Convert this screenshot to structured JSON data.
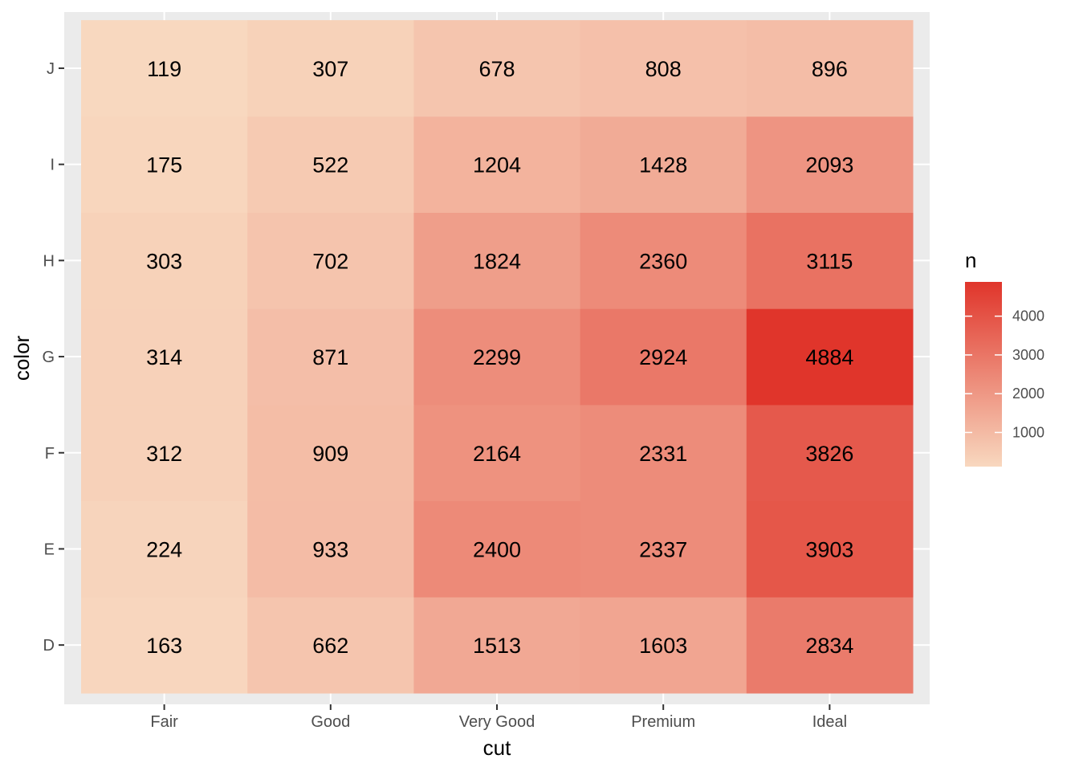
{
  "chart_data": {
    "type": "heatmap",
    "title": "",
    "xlabel": "cut",
    "ylabel": "color",
    "x_categories": [
      "Fair",
      "Good",
      "Very Good",
      "Premium",
      "Ideal"
    ],
    "y_categories": [
      "D",
      "E",
      "F",
      "G",
      "H",
      "I",
      "J"
    ],
    "values": [
      [
        163,
        662,
        1513,
        1603,
        2834
      ],
      [
        224,
        933,
        2400,
        2337,
        3903
      ],
      [
        312,
        909,
        2164,
        2331,
        3826
      ],
      [
        314,
        871,
        2299,
        2924,
        4884
      ],
      [
        303,
        702,
        1824,
        2360,
        3115
      ],
      [
        175,
        522,
        1204,
        1428,
        2093
      ],
      [
        119,
        307,
        678,
        808,
        896
      ]
    ],
    "color_scale": {
      "low_color": "#f8d8bf",
      "high_color": "#e0352b",
      "min": 119,
      "max": 4884
    },
    "legend": {
      "title": "n",
      "ticks": [
        1000,
        2000,
        3000,
        4000
      ],
      "placement": "right"
    },
    "panel_background": "#ebebeb",
    "grid": true
  }
}
